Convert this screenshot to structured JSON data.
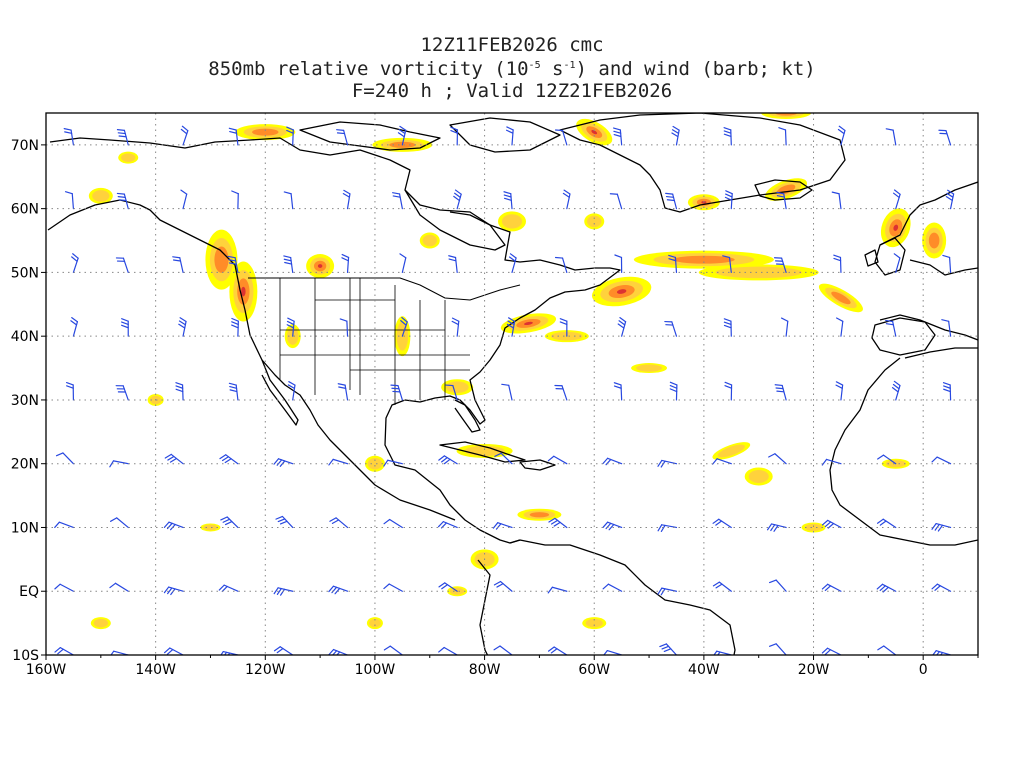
{
  "title": {
    "line1": "12Z11FEB2026 cmc",
    "line2_pre": "850mb relative vorticity (10",
    "line2_exp1": "-5",
    "line2_mid": " s",
    "line2_exp2": "-1",
    "line2_post": ") and wind (barb; kt)",
    "line3": "F=240 h ; Valid 12Z21FEB2026"
  },
  "map": {
    "lon_range": [
      -160,
      10
    ],
    "lat_range": [
      -10,
      75
    ],
    "lon_ticks": [
      "160W",
      "140W",
      "120W",
      "100W",
      "80W",
      "60W",
      "40W",
      "20W",
      "0"
    ],
    "lon_tick_values": [
      -160,
      -140,
      -120,
      -100,
      -80,
      -60,
      -40,
      -20,
      0
    ],
    "lat_ticks": [
      "70N",
      "60N",
      "50N",
      "40N",
      "30N",
      "20N",
      "10N",
      "EQ",
      "10S"
    ],
    "lat_tick_values": [
      70,
      60,
      50,
      40,
      30,
      20,
      10,
      0,
      -10
    ],
    "grid": "dotted",
    "colors": {
      "vort_low": "#ffff00",
      "vort_mid": "#ffd23c",
      "vort_high": "#ff8c28",
      "vort_peak": "#dc3232",
      "barb": "#2848e0",
      "coast": "#000000",
      "grid": "#888888"
    }
  }
}
